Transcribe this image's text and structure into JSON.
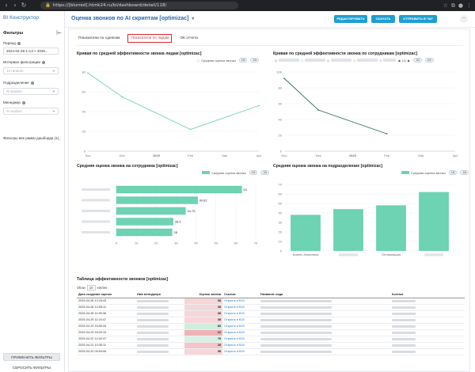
{
  "browser": {
    "url": "https://[blurred].htmk24.ru/bi/dashboard/detail/118/"
  },
  "app": {
    "logo": "BI Конструктор"
  },
  "sidebar": {
    "title": "Фильтры",
    "filters": [
      {
        "label": "Период",
        "value": "2024-04-29 4 col × 2025...",
        "placeholder": false
      },
      {
        "label": "Интервал фильтрации",
        "value": "12 random",
        "placeholder": true
      },
      {
        "label": "Подразделение",
        "value": "Я random",
        "placeholder": true
      },
      {
        "label": "Менеджер",
        "value": "Я random",
        "placeholder": true
      }
    ],
    "extra": "Фильтры вне рамки дашборда (1)",
    "apply_label": "ПРИМЕНИТЬ ФИЛЬТРЫ",
    "reset_label": "СБРОСИТЬ ФИЛЬТРЫ"
  },
  "header": {
    "title": "Оценка звонков по AI скриптам [optimizac]",
    "btn_edit": "РЕДАКТИРОВАТЬ",
    "btn_download": "СКАЧАТЬ",
    "btn_send": "ОТПРАВИТЬ В ЧАТ",
    "more": "···"
  },
  "tabs": [
    {
      "label": "Показатели по сделкам",
      "active": false
    },
    {
      "label": "Показатели по лидам",
      "active": true
    },
    {
      "label": "ОК отчета",
      "active": false
    }
  ],
  "legend_common": "Средняя оценка звонка",
  "pill_labels": [
    "1M",
    "1W"
  ],
  "chart_data": [
    {
      "id": "leads-line",
      "type": "line",
      "title": "Кривая по средней эффективности звонка лидам [optimizac]",
      "x": [
        "Nov",
        "Dec",
        "2025",
        "Feb",
        "Mar",
        "Apr"
      ],
      "ylim": [
        0,
        80
      ],
      "yticks": [
        0,
        20,
        40,
        60,
        80
      ],
      "series": [
        {
          "name": "Средняя оценка звонка",
          "color": "#6dd3b2",
          "points": [
            [
              "Nov",
              79
            ],
            [
              "Dec",
              55
            ],
            [
              "Feb",
              22
            ],
            [
              "Apr",
              46
            ]
          ]
        }
      ]
    },
    {
      "id": "employee-line",
      "type": "line",
      "title": "Кривая по средней эффективности звонка по сотрудникам [optimizac]",
      "x": [
        "Nov",
        "Dec",
        "2025",
        "Feb",
        "Mar",
        "Apr"
      ],
      "ylim": [
        0,
        100
      ],
      "yticks": [
        0,
        20,
        40,
        60,
        80,
        100
      ],
      "legend_page": "1/2",
      "series": [
        {
          "name": "",
          "color": "#2b6f5e",
          "points": [
            [
              "Nov",
              92
            ],
            [
              "Dec",
              52
            ],
            [
              "Feb",
              22
            ]
          ]
        }
      ]
    },
    {
      "id": "employee-bar",
      "type": "bar",
      "orientation": "horizontal",
      "title": "Средняя оценка звонка на сотрудника [optimizac]",
      "values": [
        63,
        40.82,
        34.75,
        28.5,
        28
      ],
      "value_labels": [
        "63",
        "40.82",
        "34.75",
        "28.5",
        "28"
      ],
      "xticks": [
        0,
        10,
        20,
        30,
        40,
        50,
        60,
        70
      ],
      "xlim": [
        0,
        70
      ],
      "series_name": "Средняя оценка звонка",
      "color": "#6dd3b2"
    },
    {
      "id": "division-bar",
      "type": "bar",
      "title": "Средняя оценка звонка на подразделение [optimizac]",
      "categories": [
        "Бизнес Аналитика",
        "",
        "Оптимизация",
        ""
      ],
      "values": [
        38,
        44,
        48,
        62
      ],
      "ylim": [
        0,
        70
      ],
      "yticks": [
        0,
        10,
        20,
        30,
        40,
        50,
        60,
        70
      ],
      "series_name": "Средняя оценка звонка",
      "color": "#6dd3b2"
    }
  ],
  "table": {
    "title": "Таблица эффективности звонков [optimizac]",
    "show_prefix": "Show",
    "show_value": "10",
    "show_suffix": "entries",
    "columns": [
      "Дата создания оценки",
      "Имя менеджера",
      "Оценка звонка",
      "Ссылка",
      "Название лида",
      "Контакт"
    ],
    "rows": [
      {
        "date": "2025-04-28 12:18:43",
        "score": 38,
        "link": "Открыть в B24",
        "shade": "#f6d6d8"
      },
      {
        "date": "2025-04-28 12:55:11",
        "score": 38,
        "link": "Открыть в B24",
        "shade": "#f6d6d8"
      },
      {
        "date": "2025-04-28 11:55:38",
        "score": 38,
        "link": "Открыть в B24",
        "shade": "#f6d6d8"
      },
      {
        "date": "2025-04-25 11:15:47",
        "score": 38,
        "link": "Открыть в B24",
        "shade": "#f6d6d8"
      },
      {
        "date": "2025-04-23 16:50:34",
        "score": 83,
        "link": "Открыть в B24",
        "shade": "#cfeedd"
      },
      {
        "date": "2025-04-23 16:20:10",
        "score": 22,
        "link": "Открыть в B24",
        "shade": "#eeb3b7"
      },
      {
        "date": "2025-04-22 12:32:47",
        "score": 78,
        "link": "Открыть в B24",
        "shade": "#d9f1e4"
      },
      {
        "date": "2025-04-22 10:35:11",
        "score": 28,
        "link": "Открыть в B24",
        "shade": "#f3c6c9"
      },
      {
        "date": "2025-04-22 09:53:06",
        "score": 38,
        "link": "Открыть в B24",
        "shade": "#f6d6d8"
      }
    ]
  }
}
